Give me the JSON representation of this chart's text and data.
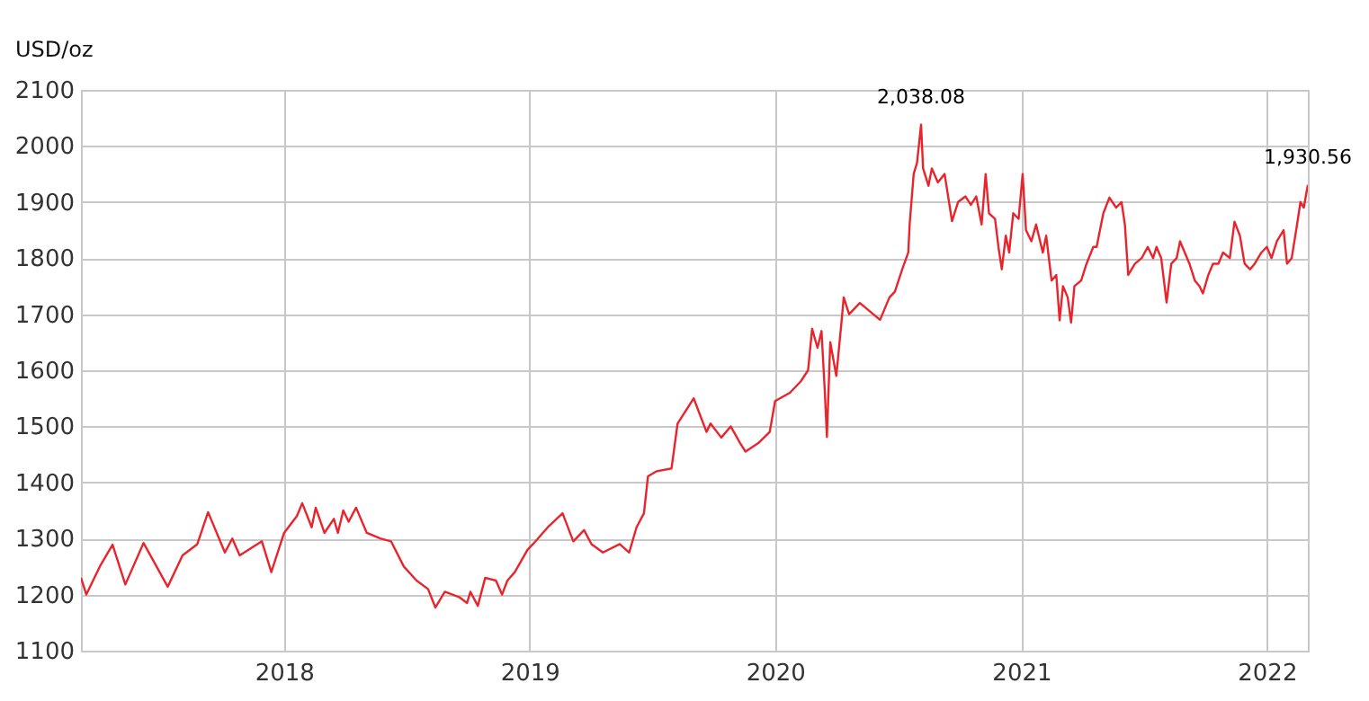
{
  "chart_data": {
    "type": "line",
    "ylabel": "USD/oz",
    "x": [
      "2017-03-05",
      "2017-03-13",
      "2017-04-02",
      "2017-04-21",
      "2017-05-10",
      "2017-06-06",
      "2017-07-12",
      "2017-08-03",
      "2017-08-25",
      "2017-09-10",
      "2017-10-05",
      "2017-10-16",
      "2017-10-27",
      "2017-11-29",
      "2017-12-13",
      "2018-01-01",
      "2018-01-20",
      "2018-01-28",
      "2018-02-11",
      "2018-02-17",
      "2018-03-02",
      "2018-03-16",
      "2018-03-22",
      "2018-03-30",
      "2018-04-07",
      "2018-04-18",
      "2018-05-04",
      "2018-05-24",
      "2018-06-09",
      "2018-06-28",
      "2018-07-17",
      "2018-08-03",
      "2018-08-14",
      "2018-08-28",
      "2018-09-19",
      "2018-09-30",
      "2018-10-05",
      "2018-10-16",
      "2018-10-27",
      "2018-11-12",
      "2018-11-21",
      "2018-11-29",
      "2018-12-10",
      "2018-12-29",
      "2019-01-06",
      "2019-01-28",
      "2019-02-19",
      "2019-03-07",
      "2019-03-23",
      "2019-04-03",
      "2019-04-20",
      "2019-05-15",
      "2019-05-29",
      "2019-06-09",
      "2019-06-20",
      "2019-06-26",
      "2019-07-09",
      "2019-07-31",
      "2019-08-09",
      "2019-08-17",
      "2019-09-02",
      "2019-09-21",
      "2019-09-27",
      "2019-10-13",
      "2019-10-27",
      "2019-11-10",
      "2019-11-18",
      "2019-12-07",
      "2019-12-24",
      "2020-01-01",
      "2020-01-23",
      "2020-02-08",
      "2020-02-19",
      "2020-02-25",
      "2020-03-04",
      "2020-03-10",
      "2020-03-15",
      "2020-03-18",
      "2020-03-23",
      "2020-04-01",
      "2020-04-09",
      "2020-04-12",
      "2020-04-20",
      "2020-05-06",
      "2020-06-05",
      "2020-06-19",
      "2020-06-27",
      "2020-07-08",
      "2020-07-17",
      "2020-07-19",
      "2020-07-25",
      "2020-07-30",
      "2020-08-05",
      "2020-08-08",
      "2020-08-16",
      "2020-08-21",
      "2020-08-30",
      "2020-09-09",
      "2020-09-20",
      "2020-09-29",
      "2020-10-10",
      "2020-10-18",
      "2020-10-26",
      "2020-11-03",
      "2020-11-09",
      "2020-11-14",
      "2020-11-23",
      "2020-11-28",
      "2020-12-03",
      "2020-12-09",
      "2020-12-14",
      "2020-12-20",
      "2020-12-28",
      "2021-01-03",
      "2021-01-08",
      "2021-01-16",
      "2021-01-23",
      "2021-02-02",
      "2021-02-07",
      "2021-02-15",
      "2021-02-22",
      "2021-02-27",
      "2021-03-04",
      "2021-03-11",
      "2021-03-16",
      "2021-03-21",
      "2021-03-31",
      "2021-04-08",
      "2021-04-18",
      "2021-04-23",
      "2021-05-03",
      "2021-05-12",
      "2021-05-22",
      "2021-05-30",
      "2021-06-04",
      "2021-06-09",
      "2021-06-19",
      "2021-06-29",
      "2021-07-08",
      "2021-07-16",
      "2021-07-21",
      "2021-07-28",
      "2021-08-05",
      "2021-08-12",
      "2021-08-20",
      "2021-08-25",
      "2021-09-01",
      "2021-09-08",
      "2021-09-16",
      "2021-09-23",
      "2021-09-28",
      "2021-10-06",
      "2021-10-13",
      "2021-10-21",
      "2021-10-28",
      "2021-11-07",
      "2021-11-14",
      "2021-11-22",
      "2021-11-29",
      "2021-12-07",
      "2021-12-14",
      "2021-12-24",
      "2022-01-01",
      "2022-01-08",
      "2022-01-16",
      "2022-01-26",
      "2022-01-31",
      "2022-02-07",
      "2022-02-15",
      "2022-02-20",
      "2022-02-25",
      "2022-03-03"
    ],
    "series": [
      {
        "color": "#e8252d",
        "values": [
          1230,
          1200,
          1250,
          1289,
          1218,
          1292,
          1214,
          1270,
          1290,
          1347,
          1275,
          1300,
          1270,
          1295,
          1240,
          1310,
          1340,
          1363,
          1320,
          1355,
          1310,
          1335,
          1310,
          1350,
          1330,
          1355,
          1310,
          1300,
          1295,
          1250,
          1225,
          1210,
          1177,
          1205,
          1195,
          1185,
          1205,
          1180,
          1230,
          1225,
          1200,
          1225,
          1240,
          1280,
          1290,
          1320,
          1345,
          1295,
          1315,
          1290,
          1275,
          1290,
          1275,
          1320,
          1345,
          1411,
          1420,
          1425,
          1505,
          1520,
          1550,
          1490,
          1505,
          1480,
          1500,
          1470,
          1455,
          1470,
          1490,
          1545,
          1560,
          1580,
          1600,
          1674,
          1640,
          1670,
          1560,
          1481,
          1650,
          1590,
          1690,
          1730,
          1700,
          1720,
          1690,
          1730,
          1740,
          1780,
          1810,
          1860,
          1950,
          1970,
          2038.08,
          1960,
          1929,
          1960,
          1935,
          1950,
          1866,
          1900,
          1910,
          1895,
          1910,
          1860,
          1950,
          1880,
          1870,
          1820,
          1780,
          1840,
          1810,
          1880,
          1870,
          1950,
          1850,
          1830,
          1860,
          1810,
          1840,
          1760,
          1770,
          1689,
          1750,
          1730,
          1685,
          1750,
          1760,
          1790,
          1820,
          1820,
          1880,
          1908,
          1890,
          1900,
          1860,
          1770,
          1790,
          1800,
          1820,
          1800,
          1820,
          1800,
          1721,
          1790,
          1800,
          1830,
          1810,
          1790,
          1760,
          1750,
          1737,
          1770,
          1790,
          1790,
          1810,
          1800,
          1865,
          1840,
          1790,
          1780,
          1790,
          1810,
          1820,
          1800,
          1830,
          1850,
          1790,
          1800,
          1860,
          1900,
          1890,
          1930.56
        ]
      }
    ],
    "xlim": [
      "2017-03-05",
      "2022-03-03"
    ],
    "xticks": [
      {
        "value": "2018-01-01",
        "label": "2018"
      },
      {
        "value": "2019-01-01",
        "label": "2019"
      },
      {
        "value": "2020-01-01",
        "label": "2020"
      },
      {
        "value": "2021-01-01",
        "label": "2021"
      },
      {
        "value": "2022-01-01",
        "label": "2022"
      }
    ],
    "ylim": [
      1100,
      2100
    ],
    "yticks": [
      1100,
      1200,
      1300,
      1400,
      1500,
      1600,
      1700,
      1800,
      1900,
      2000,
      2100
    ],
    "annotations": [
      {
        "text": "2,038.08",
        "x": "2020-08-05",
        "y": 2038.08
      },
      {
        "text": "1,930.56",
        "x": "2022-03-03",
        "y": 1930.56
      }
    ],
    "grid": true,
    "marker": "none",
    "line_style": "solid"
  }
}
